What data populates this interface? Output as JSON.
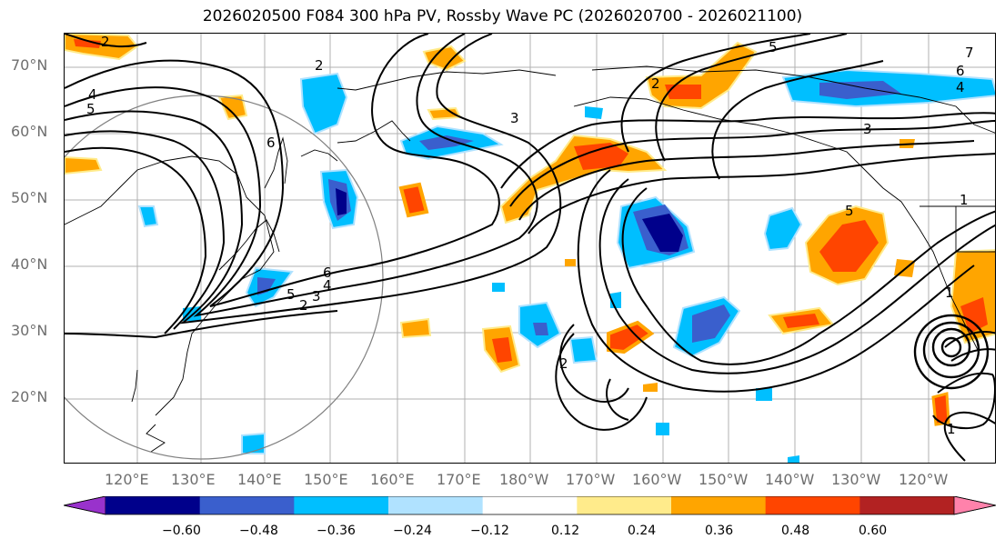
{
  "title": "2026020500 F084 300 hPa PV, Rossby Wave PC (2026020700 - 2026021100)",
  "lat_labels": [
    "70°N",
    "60°N",
    "50°N",
    "40°N",
    "30°N",
    "20°N"
  ],
  "lon_labels": [
    "120°E",
    "130°E",
    "140°E",
    "150°E",
    "160°E",
    "170°E",
    "180°W",
    "170°W",
    "160°W",
    "150°W",
    "140°W",
    "130°W",
    "120°W"
  ],
  "colorbar": {
    "ticks": [
      "−0.60",
      "−0.48",
      "−0.36",
      "−0.24",
      "−0.12",
      "0.12",
      "0.24",
      "0.36",
      "0.48",
      "0.60"
    ],
    "colors": [
      "#9932cc",
      "#00008b",
      "#3a5fcd",
      "#00bfff",
      "#b0e2ff",
      "#ffffff",
      "#ffeb8b",
      "#ffa500",
      "#ff4500",
      "#b22222",
      "#ff82ab"
    ]
  },
  "contour_labels": [
    "2",
    "4",
    "5",
    "6",
    "3",
    "5",
    "7",
    "6",
    "4",
    "3",
    "2",
    "1",
    "2",
    "3",
    "4",
    "5",
    "6",
    "2",
    "5",
    "1",
    "1",
    "2"
  ]
}
